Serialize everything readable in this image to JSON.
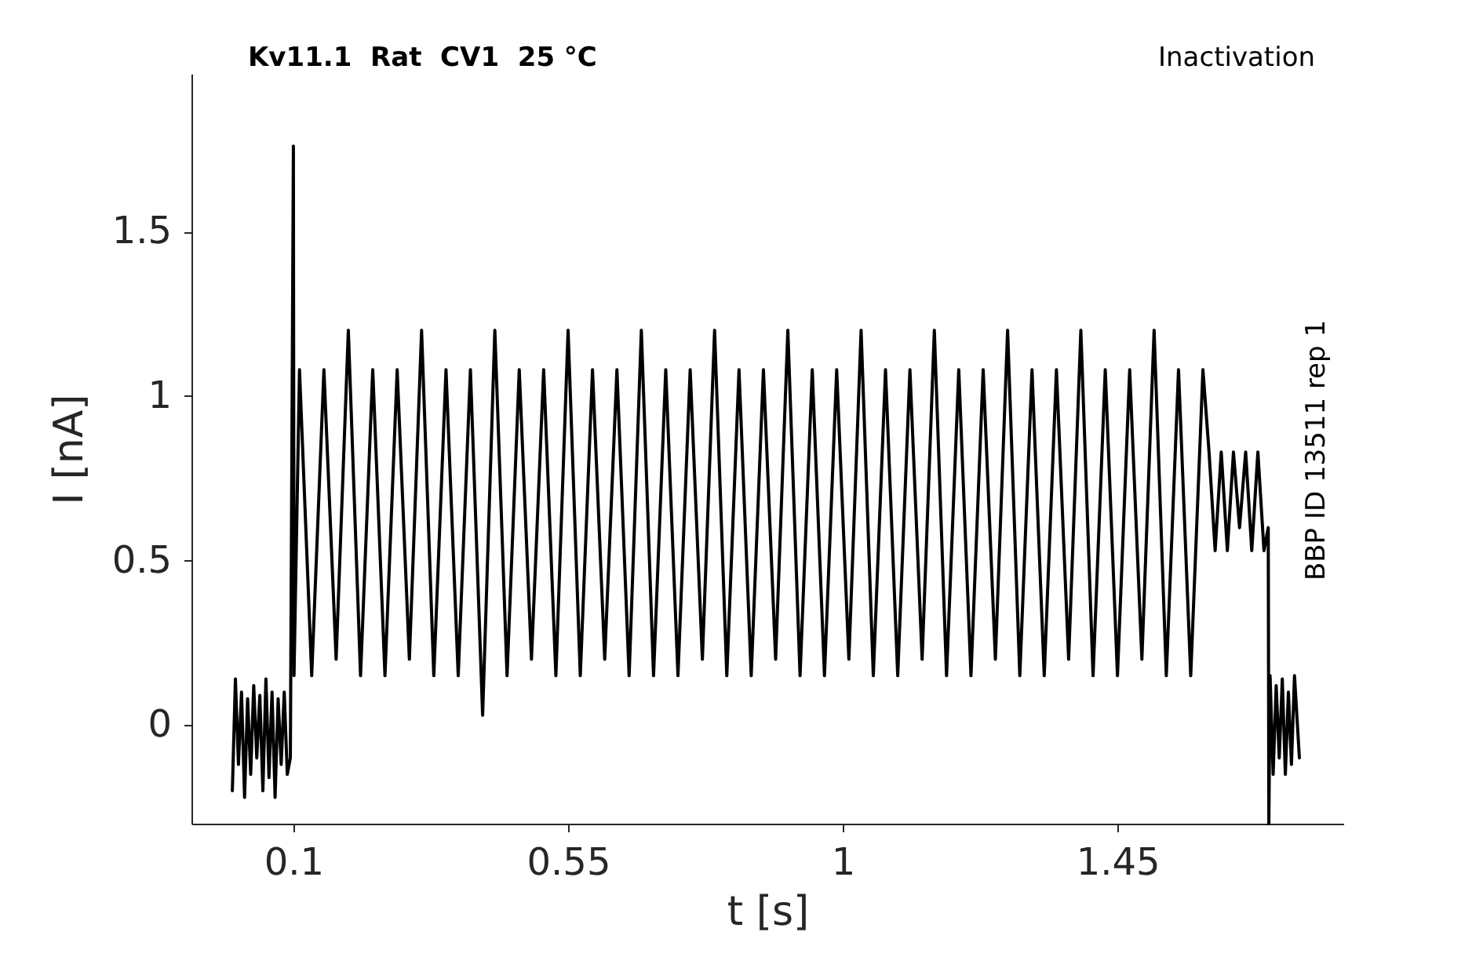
{
  "chart_data": {
    "type": "line",
    "title": "Kv11.1  Rat  CV1  25 °C",
    "xlabel": "t [s]",
    "ylabel": "I [nA]",
    "annotations": [
      "Inactivation",
      "BBP ID 13511 rep 1"
    ],
    "xlim": [
      -0.067,
      1.82
    ],
    "ylim": [
      -0.3,
      1.98
    ],
    "xticks": [
      0.1,
      0.55,
      1,
      1.45
    ],
    "yticks": [
      0,
      0.5,
      1,
      1.5
    ],
    "grid": false,
    "marker": "none",
    "line_style": "solid",
    "series": [
      {
        "color": "#000000",
        "x": [
          0,
          0.005,
          0.01,
          0.015,
          0.02,
          0.025,
          0.03,
          0.035,
          0.04,
          0.045,
          0.05,
          0.055,
          0.06,
          0.065,
          0.07,
          0.075,
          0.08,
          0.085,
          0.09,
          0.095,
          0.1,
          0.101,
          0.11,
          0.13,
          0.15,
          0.17,
          0.19,
          0.21,
          0.23,
          0.25,
          0.27,
          0.29,
          0.31,
          0.33,
          0.35,
          0.37,
          0.39,
          0.41,
          0.43,
          0.45,
          0.47,
          0.49,
          0.51,
          0.53,
          0.55,
          0.57,
          0.59,
          0.61,
          0.63,
          0.65,
          0.67,
          0.69,
          0.71,
          0.73,
          0.75,
          0.77,
          0.79,
          0.81,
          0.83,
          0.85,
          0.87,
          0.89,
          0.91,
          0.93,
          0.95,
          0.97,
          0.99,
          1.01,
          1.03,
          1.05,
          1.07,
          1.09,
          1.11,
          1.13,
          1.15,
          1.17,
          1.19,
          1.21,
          1.23,
          1.25,
          1.27,
          1.29,
          1.31,
          1.33,
          1.35,
          1.37,
          1.39,
          1.41,
          1.43,
          1.45,
          1.47,
          1.49,
          1.51,
          1.53,
          1.55,
          1.57,
          1.59,
          1.6,
          1.61,
          1.62,
          1.63,
          1.64,
          1.65,
          1.66,
          1.67,
          1.68,
          1.69,
          1.697,
          1.698,
          1.7,
          1.705,
          1.71,
          1.715,
          1.72,
          1.725,
          1.73,
          1.735,
          1.74,
          1.748
        ],
        "values": [
          -0.2,
          0.14,
          -0.12,
          0.1,
          -0.22,
          0.08,
          -0.15,
          0.12,
          -0.1,
          0.09,
          -0.2,
          0.14,
          -0.16,
          0.1,
          -0.22,
          0.08,
          -0.12,
          0.1,
          -0.15,
          -0.1,
          1.76,
          0.15,
          1.08,
          0.15,
          1.08,
          0.2,
          1.2,
          0.15,
          1.08,
          0.15,
          1.08,
          0.2,
          1.2,
          0.15,
          1.08,
          0.15,
          1.08,
          0.03,
          1.2,
          0.15,
          1.08,
          0.2,
          1.08,
          0.15,
          1.2,
          0.15,
          1.08,
          0.2,
          1.08,
          0.15,
          1.2,
          0.15,
          1.08,
          0.15,
          1.08,
          0.2,
          1.2,
          0.15,
          1.08,
          0.15,
          1.08,
          0.2,
          1.2,
          0.15,
          1.08,
          0.15,
          1.08,
          0.2,
          1.2,
          0.15,
          1.08,
          0.15,
          1.08,
          0.2,
          1.2,
          0.15,
          1.08,
          0.15,
          1.08,
          0.2,
          1.2,
          0.15,
          1.08,
          0.15,
          1.08,
          0.2,
          1.2,
          0.15,
          1.08,
          0.15,
          1.08,
          0.2,
          1.2,
          0.15,
          1.08,
          0.15,
          1.08,
          0.83,
          0.53,
          0.83,
          0.53,
          0.83,
          0.6,
          0.83,
          0.53,
          0.83,
          0.53,
          0.6,
          -0.3,
          0.15,
          -0.15,
          0.12,
          -0.1,
          0.14,
          -0.15,
          0.1,
          -0.12,
          0.15,
          -0.1
        ]
      }
    ]
  }
}
